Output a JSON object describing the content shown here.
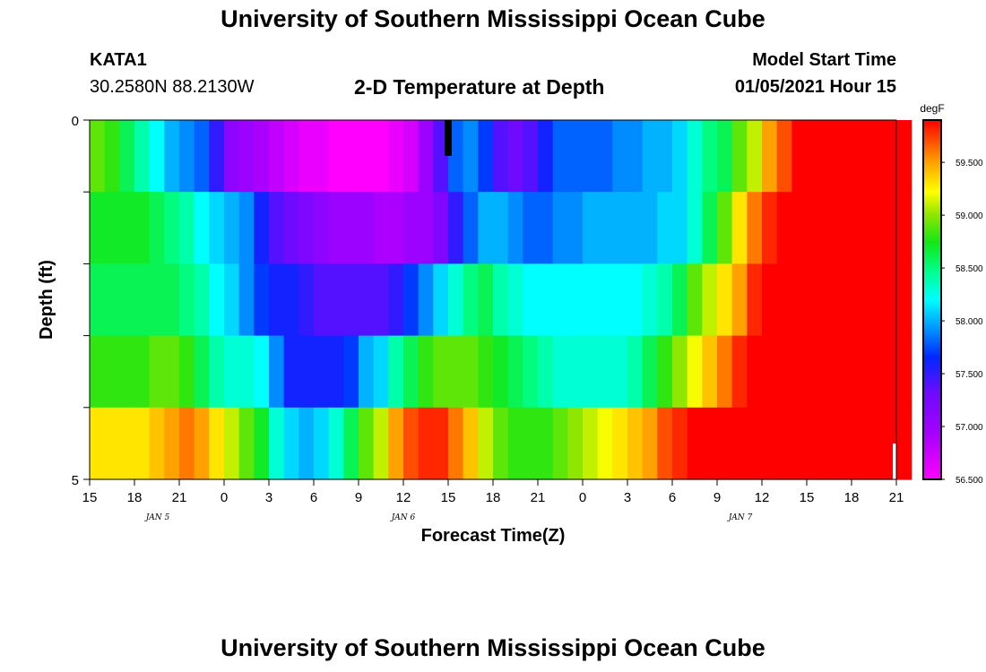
{
  "page": {
    "title_top": "University of Southern Mississippi Ocean Cube",
    "title_bottom": "University of Southern Mississippi Ocean Cube",
    "station_id": "KATA1",
    "station_coords": "30.2580N 88.2130W",
    "plot_title": "2-D Temperature at Depth",
    "model_start_label": "Model Start Time",
    "model_start_value": "01/05/2021 Hour 15"
  },
  "chart_data": {
    "type": "heatmap",
    "title": "2-D Temperature at Depth",
    "xlabel": "Forecast Time(Z)",
    "ylabel": "Depth (ft)",
    "x_tick_labels": [
      "15",
      "18",
      "21",
      "0",
      "3",
      "6",
      "9",
      "12",
      "15",
      "18",
      "21",
      "0",
      "3",
      "6",
      "9",
      "12",
      "15",
      "18",
      "21"
    ],
    "date_labels": [
      "JAN 5",
      "JAN 6",
      "JAN 7"
    ],
    "y_tick_labels": [
      "0",
      "5"
    ],
    "y_range": [
      0,
      5
    ],
    "x_range_hours": [
      0,
      54
    ],
    "depth_layers": 5,
    "colorbar": {
      "unit": "degF",
      "min": 56.5,
      "max": 59.9,
      "ticks": [
        "56.500",
        "57.000",
        "57.500",
        "58.000",
        "58.500",
        "59.000",
        "59.500"
      ]
    },
    "temperature_rows_degF": [
      {
        "start_hour": 0,
        "values": [
          58.9,
          58.8,
          58.6,
          58.4,
          58.2,
          58.0,
          57.9,
          57.8,
          57.5,
          57.1,
          57.0,
          56.9,
          56.8,
          56.7,
          56.6,
          56.6,
          56.5,
          56.5,
          56.5,
          56.5,
          56.6,
          56.7,
          57.0,
          57.4,
          57.8,
          57.9,
          57.7,
          57.4,
          57.3,
          57.4,
          57.6,
          57.8,
          57.8,
          57.8,
          57.8,
          57.9,
          57.9,
          58.0,
          58.0,
          58.1,
          58.3,
          58.5,
          58.6,
          58.9,
          59.1,
          59.5,
          59.7,
          59.9,
          59.9,
          59.9,
          59.9,
          59.9,
          59.9,
          59.9,
          59.9
        ]
      },
      {
        "start_hour": 3,
        "values": [
          58.7,
          58.6,
          58.5,
          58.4,
          58.2,
          58.1,
          58.0,
          57.9,
          57.6,
          57.4,
          57.3,
          57.2,
          57.1,
          57.0,
          57.0,
          57.0,
          56.9,
          56.9,
          57.0,
          57.0,
          57.2,
          57.5,
          57.8,
          58.0,
          58.0,
          57.9,
          57.8,
          57.8,
          57.9,
          57.9,
          58.0,
          58.0,
          58.0,
          58.0,
          58.0,
          58.1,
          58.1,
          58.3,
          58.6,
          58.9,
          59.3,
          59.6,
          59.8,
          59.9,
          59.9,
          59.9,
          59.9,
          59.9,
          59.9,
          59.9,
          59.9,
          59.9
        ]
      },
      {
        "start_hour": 3,
        "values": [
          58.6,
          58.6,
          58.6,
          58.5,
          58.4,
          58.2,
          58.1,
          57.9,
          57.7,
          57.6,
          57.6,
          57.5,
          57.4,
          57.4,
          57.4,
          57.4,
          57.4,
          57.5,
          57.7,
          57.9,
          58.1,
          58.3,
          58.5,
          58.6,
          58.4,
          58.3,
          58.2,
          58.2,
          58.2,
          58.2,
          58.2,
          58.2,
          58.2,
          58.2,
          58.3,
          58.4,
          58.6,
          58.9,
          59.1,
          59.3,
          59.5,
          59.8,
          59.9,
          59.9,
          59.9,
          59.9,
          59.9,
          59.9,
          59.9,
          59.9,
          59.9,
          59.9
        ]
      },
      {
        "start_hour": 3,
        "values": [
          58.8,
          58.9,
          58.9,
          58.8,
          58.6,
          58.4,
          58.3,
          58.3,
          58.2,
          57.9,
          57.6,
          57.6,
          57.6,
          57.6,
          57.7,
          58.0,
          58.1,
          58.4,
          58.6,
          58.8,
          58.9,
          58.9,
          58.9,
          58.8,
          58.7,
          58.6,
          58.5,
          58.4,
          58.3,
          58.3,
          58.3,
          58.3,
          58.3,
          58.4,
          58.6,
          58.8,
          59.0,
          59.2,
          59.4,
          59.6,
          59.8,
          59.9,
          59.9,
          59.9,
          59.9,
          59.9,
          59.9,
          59.9,
          59.9,
          59.9,
          59.9,
          59.9
        ]
      },
      {
        "start_hour": 3,
        "values": [
          59.3,
          59.4,
          59.5,
          59.6,
          59.5,
          59.3,
          59.1,
          58.9,
          58.7,
          58.3,
          58.1,
          58.0,
          58.1,
          58.3,
          58.6,
          58.9,
          59.1,
          59.5,
          59.7,
          59.8,
          59.8,
          59.6,
          59.4,
          59.1,
          58.9,
          58.8,
          58.8,
          58.8,
          58.9,
          59.0,
          59.1,
          59.2,
          59.3,
          59.4,
          59.5,
          59.7,
          59.8,
          59.9,
          59.9,
          59.9,
          59.9,
          59.9,
          59.9,
          59.9,
          59.9,
          59.9,
          59.9,
          59.9,
          59.9,
          59.9,
          59.9,
          59.9
        ]
      }
    ],
    "markers": [
      "current-time-marker at hour 24"
    ]
  }
}
